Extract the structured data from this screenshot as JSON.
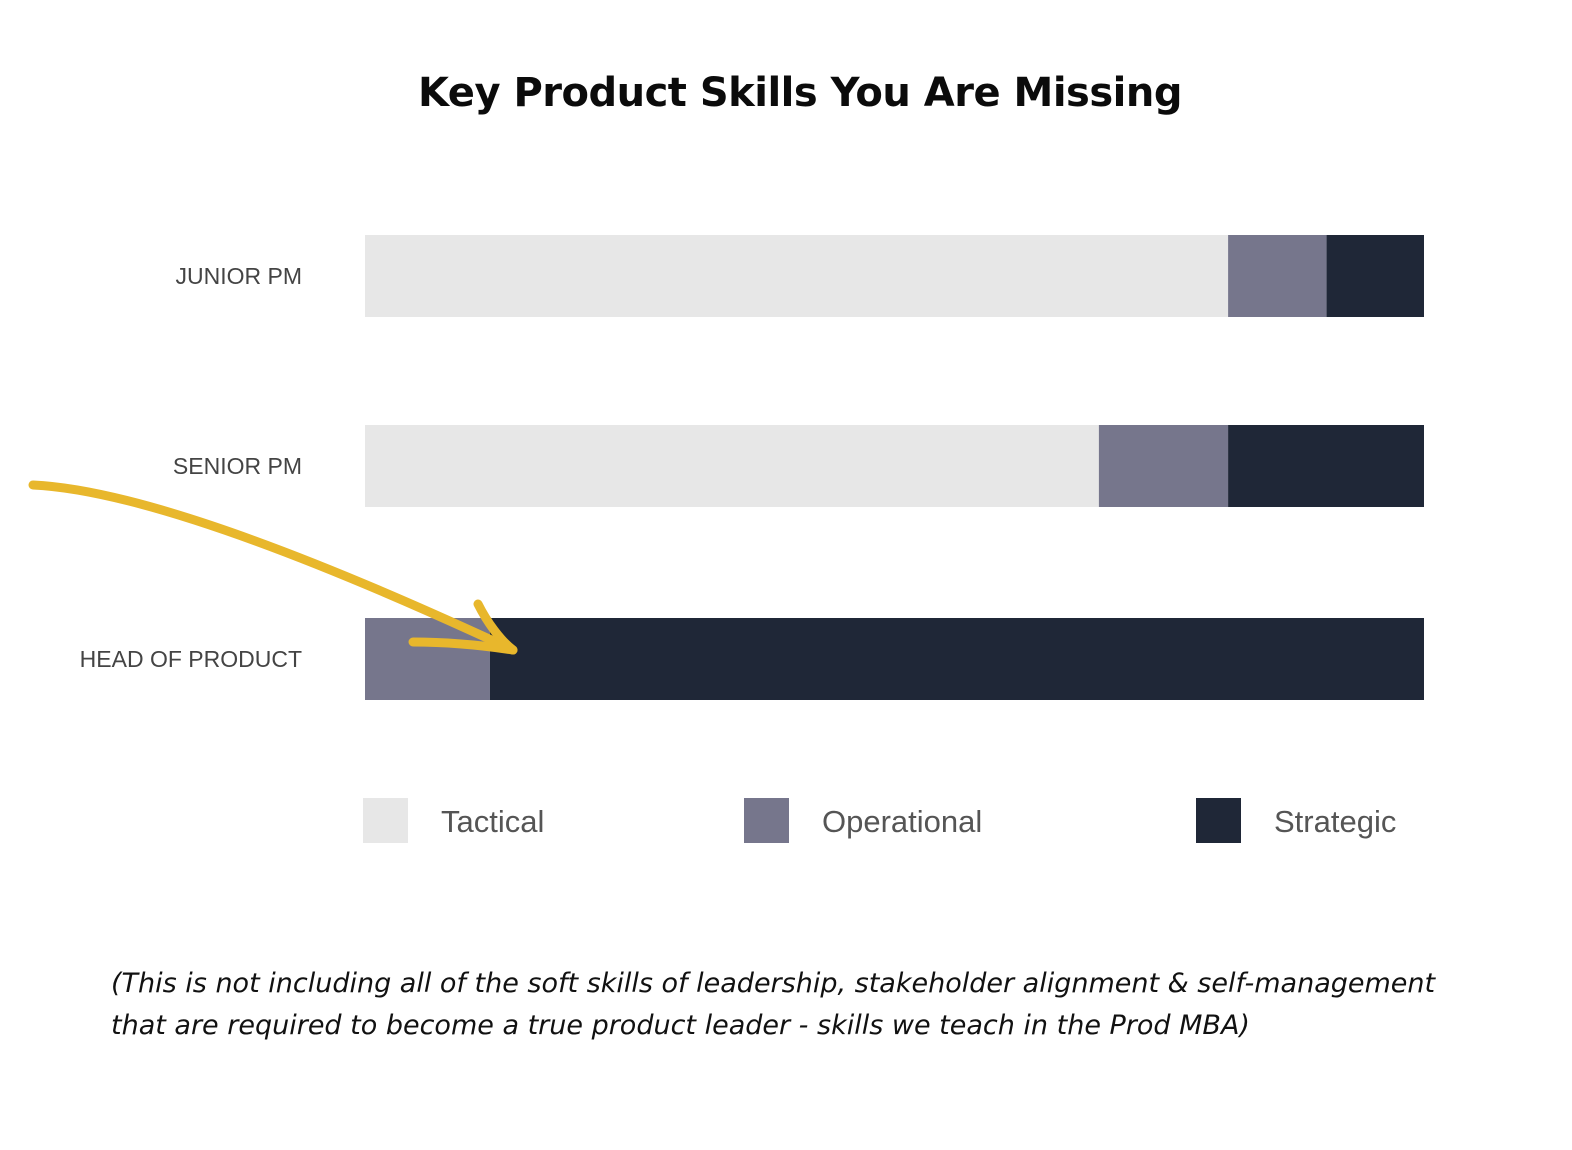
{
  "chart_data": {
    "type": "bar",
    "orientation": "horizontal",
    "stacked": true,
    "title": "Key Product Skills You Are Missing",
    "categories": [
      "JUNIOR PM",
      "SENIOR PM",
      "HEAD OF PRODUCT"
    ],
    "series": [
      {
        "name": "Tactical",
        "color": "#e7e7e7",
        "values": [
          81.5,
          69.3,
          0
        ]
      },
      {
        "name": "Operational",
        "color": "#76768c",
        "values": [
          9.3,
          12.2,
          11.8
        ]
      },
      {
        "name": "Strategic",
        "color": "#1f2737",
        "values": [
          9.2,
          18.5,
          88.2
        ]
      }
    ],
    "xlim": [
      0,
      100
    ],
    "grid": false,
    "legend_position": "bottom",
    "annotation": {
      "type": "arrow",
      "color": "#e8b72c",
      "target": "HEAD OF PRODUCT"
    }
  },
  "footnote": "(This is not including all of the soft skills of leadership, stakeholder alignment & self-management that are required to become a true product leader - skills we teach in the Prod MBA)"
}
